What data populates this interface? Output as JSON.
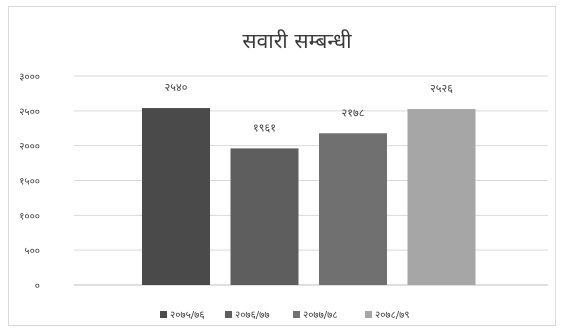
{
  "chart_data": {
    "type": "bar",
    "title": "सवारी सम्बन्धी",
    "xlabel": "",
    "ylabel": "",
    "ylim": [
      0,
      3000
    ],
    "yticks": [
      0,
      500,
      1000,
      1500,
      2000,
      2500,
      3000
    ],
    "ytick_labels": [
      "०",
      "५००",
      "१०००",
      "१५००",
      "२०००",
      "२५००",
      "३०००"
    ],
    "grid": true,
    "legend_position": "bottom",
    "categories": [
      "२०७५/७६",
      "२०७६/७७",
      "२०७७/७८",
      "२०७८/७९"
    ],
    "values": [
      2540,
      1961,
      2178,
      2526
    ],
    "data_labels": [
      "२५४०",
      "१९६१",
      "२१७८",
      "२५२६"
    ],
    "colors": [
      "#4a4a4a",
      "#5e5e5e",
      "#707070",
      "#a6a6a6"
    ]
  }
}
